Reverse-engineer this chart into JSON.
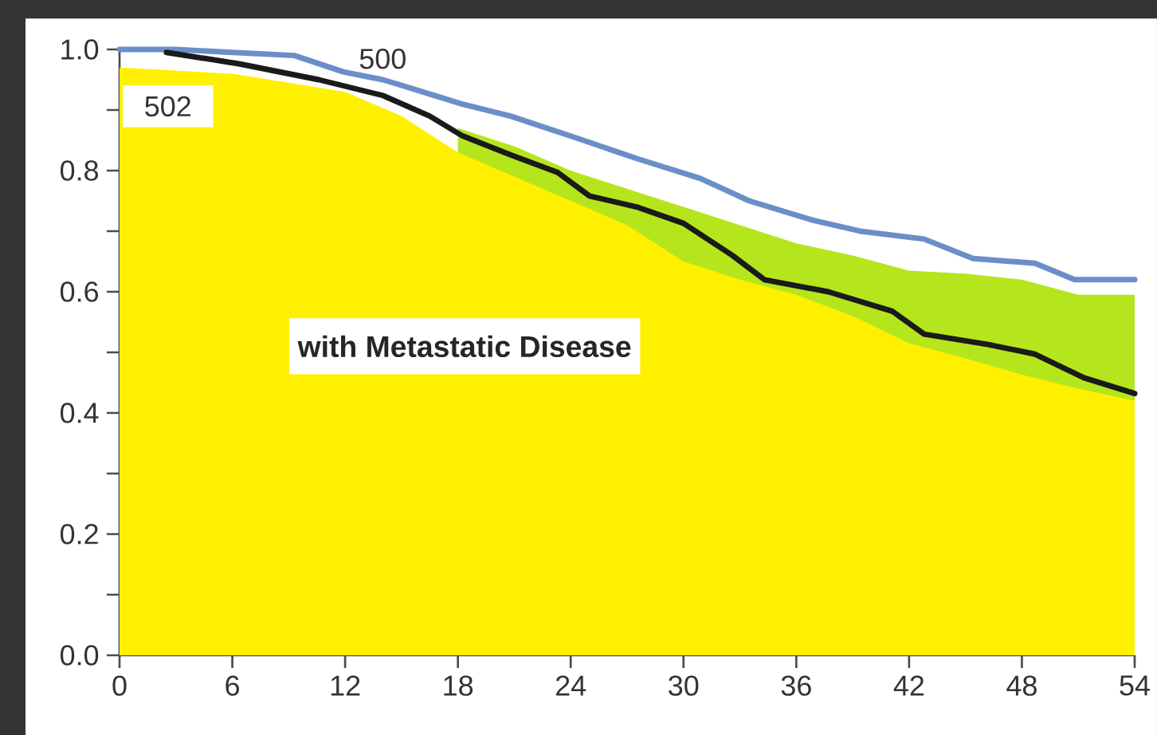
{
  "chart_data": {
    "type": "line",
    "annotations": [
      "with Metastatic Disease"
    ],
    "xlim": [
      0,
      54
    ],
    "ylim": [
      0,
      1
    ],
    "xticks": [
      0,
      6,
      12,
      18,
      24,
      30,
      36,
      42,
      48,
      54
    ],
    "yticks": [
      {
        "value": 0,
        "label": "0.0"
      },
      {
        "value": 0.2,
        "label": "0.2"
      },
      {
        "value": 0.4,
        "label": "0.4"
      },
      {
        "value": 0.6,
        "label": "0.6"
      },
      {
        "value": 0.8,
        "label": "0.8"
      },
      {
        "value": 1,
        "label": "1.0"
      }
    ],
    "series": [
      {
        "type": "area",
        "color": "#b5e61d",
        "x": [
          18,
          21,
          24,
          27,
          30,
          33,
          36,
          39,
          42,
          45,
          48,
          51,
          54
        ],
        "values": [
          0.87,
          0.84,
          0.8,
          0.77,
          0.74,
          0.71,
          0.68,
          0.66,
          0.635,
          0.63,
          0.62,
          0.595,
          0.595
        ]
      },
      {
        "type": "area",
        "color": "#fff000",
        "x": [
          0,
          3,
          6,
          9,
          12,
          15,
          18,
          21,
          24,
          27,
          30,
          33,
          36,
          39,
          42,
          45,
          48,
          51,
          54
        ],
        "values": [
          0.97,
          0.965,
          0.96,
          0.945,
          0.93,
          0.89,
          0.83,
          0.79,
          0.75,
          0.71,
          0.65,
          0.62,
          0.595,
          0.56,
          0.515,
          0.49,
          0.463,
          0.44,
          0.42
        ]
      },
      {
        "name": "500",
        "color": "#6a8fc8",
        "x": [
          0,
          3,
          6,
          9.3,
          11.9,
          14,
          15.7,
          18.2,
          20.8,
          24.2,
          27.5,
          30.9,
          33.5,
          36.9,
          39.4,
          42.8,
          45.4,
          48.7,
          50.8,
          54
        ],
        "values": [
          1.0,
          1.0,
          0.995,
          0.99,
          0.963,
          0.95,
          0.934,
          0.91,
          0.89,
          0.855,
          0.82,
          0.787,
          0.75,
          0.718,
          0.7,
          0.687,
          0.655,
          0.647,
          0.62,
          0.62
        ]
      },
      {
        "name": "502",
        "color": "#1a1a1a",
        "x": [
          2.5,
          6.4,
          10.6,
          14,
          16.5,
          18.2,
          20.8,
          23.3,
          25,
          27.5,
          30,
          32.6,
          34.3,
          37.7,
          41.1,
          42.8,
          46.2,
          48.7,
          51.3,
          54
        ],
        "values": [
          0.995,
          0.976,
          0.95,
          0.924,
          0.89,
          0.858,
          0.826,
          0.797,
          0.758,
          0.74,
          0.713,
          0.66,
          0.62,
          0.6,
          0.568,
          0.53,
          0.513,
          0.497,
          0.458,
          0.432
        ]
      }
    ]
  }
}
